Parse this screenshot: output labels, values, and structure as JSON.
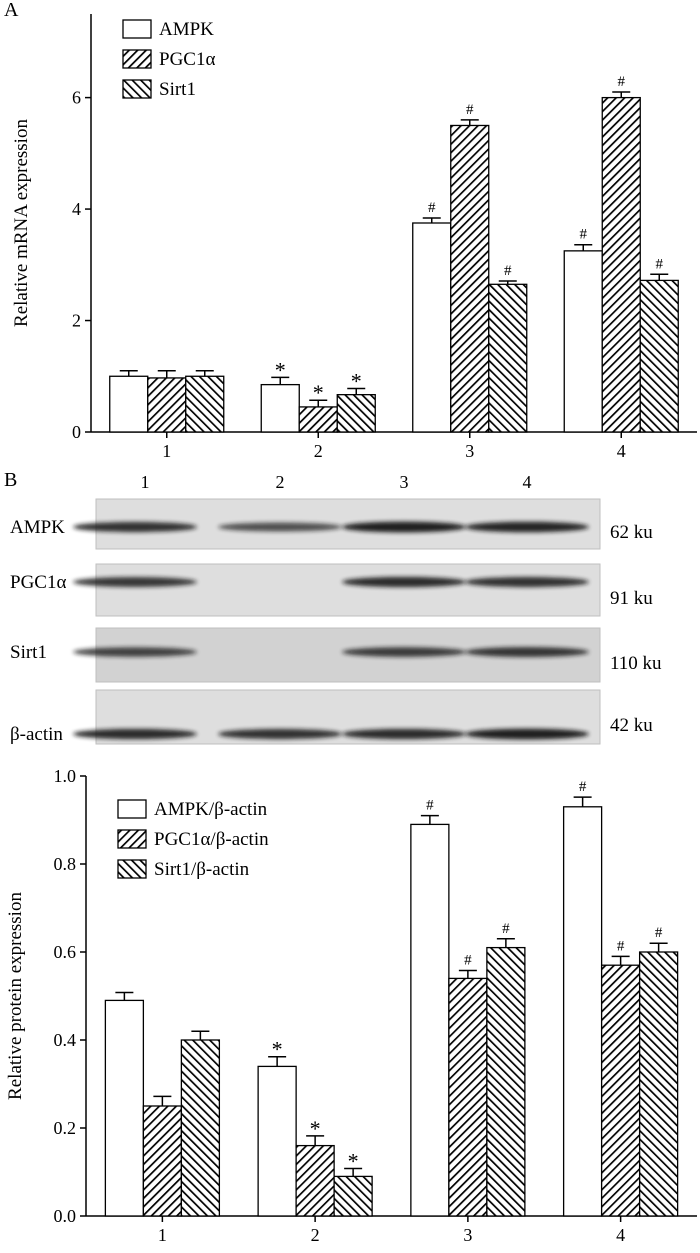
{
  "panels": {
    "a_label": "A",
    "b_label": "B"
  },
  "colors": {
    "ink": "#000000",
    "paper": "#ffffff",
    "blot_bg": "#dcdcdc",
    "band": "#161616"
  },
  "chart_data": [
    {
      "type": "bar",
      "panel": "A",
      "title": "",
      "xlabel": "",
      "ylabel": "Relative mRNA expression",
      "categories": [
        "1",
        "2",
        "3",
        "4"
      ],
      "ylim": [
        0,
        7.5
      ],
      "yticks": [
        0,
        2,
        4,
        6
      ],
      "grid": false,
      "legend_position": "top-left",
      "series": [
        {
          "name": "AMPK",
          "pattern": "open",
          "values": [
            1.0,
            0.85,
            3.75,
            3.25
          ],
          "errors": [
            0.1,
            0.13,
            0.09,
            0.11
          ],
          "marks": [
            "",
            "*",
            "#",
            "#"
          ]
        },
        {
          "name": "PGC1α",
          "pattern": "hatch-right",
          "values": [
            0.97,
            0.45,
            5.5,
            6.0
          ],
          "errors": [
            0.13,
            0.12,
            0.1,
            0.1
          ],
          "marks": [
            "",
            "*",
            "#",
            "#"
          ]
        },
        {
          "name": "Sirt1",
          "pattern": "hatch-left",
          "values": [
            1.0,
            0.67,
            2.65,
            2.72
          ],
          "errors": [
            0.1,
            0.11,
            0.06,
            0.11
          ],
          "marks": [
            "",
            "*",
            "#",
            "#"
          ]
        }
      ]
    },
    {
      "type": "bar",
      "panel": "B",
      "title": "",
      "xlabel": "",
      "ylabel": "Relative protein expression",
      "categories": [
        "1",
        "2",
        "3",
        "4"
      ],
      "ylim": [
        0,
        1.0
      ],
      "yticks": [
        "0.0",
        "0.2",
        "0.4",
        "0.6",
        "0.8",
        "1.0"
      ],
      "grid": false,
      "legend_position": "top-left",
      "series": [
        {
          "name": "AMPK/β-actin",
          "pattern": "open",
          "values": [
            0.49,
            0.34,
            0.89,
            0.93
          ],
          "errors": [
            0.018,
            0.022,
            0.02,
            0.022
          ],
          "marks": [
            "",
            "*",
            "#",
            "#"
          ]
        },
        {
          "name": "PGC1α/β-actin",
          "pattern": "hatch-right",
          "values": [
            0.25,
            0.16,
            0.54,
            0.57
          ],
          "errors": [
            0.022,
            0.022,
            0.018,
            0.02
          ],
          "marks": [
            "",
            "*",
            "#",
            "#"
          ]
        },
        {
          "name": "Sirt1/β-actin",
          "pattern": "hatch-left",
          "values": [
            0.4,
            0.09,
            0.61,
            0.6
          ],
          "errors": [
            0.02,
            0.018,
            0.02,
            0.02
          ],
          "marks": [
            "",
            "*",
            "#",
            "#"
          ]
        }
      ]
    }
  ],
  "blot": {
    "lanes": [
      "1",
      "2",
      "3",
      "4"
    ],
    "rows": [
      {
        "label": "AMPK",
        "size": "62 ku",
        "intensity": [
          0.85,
          0.6,
          1.0,
          0.95
        ]
      },
      {
        "label": "PGC1α",
        "size": "91 ku",
        "intensity": [
          0.8,
          0.05,
          0.9,
          0.85
        ]
      },
      {
        "label": "Sirt1",
        "size": "110 ku",
        "intensity": [
          0.7,
          0.05,
          0.75,
          0.8
        ]
      },
      {
        "label": "β-actin",
        "size": "42 ku",
        "intensity": [
          0.9,
          0.85,
          0.9,
          1.0
        ]
      }
    ]
  }
}
